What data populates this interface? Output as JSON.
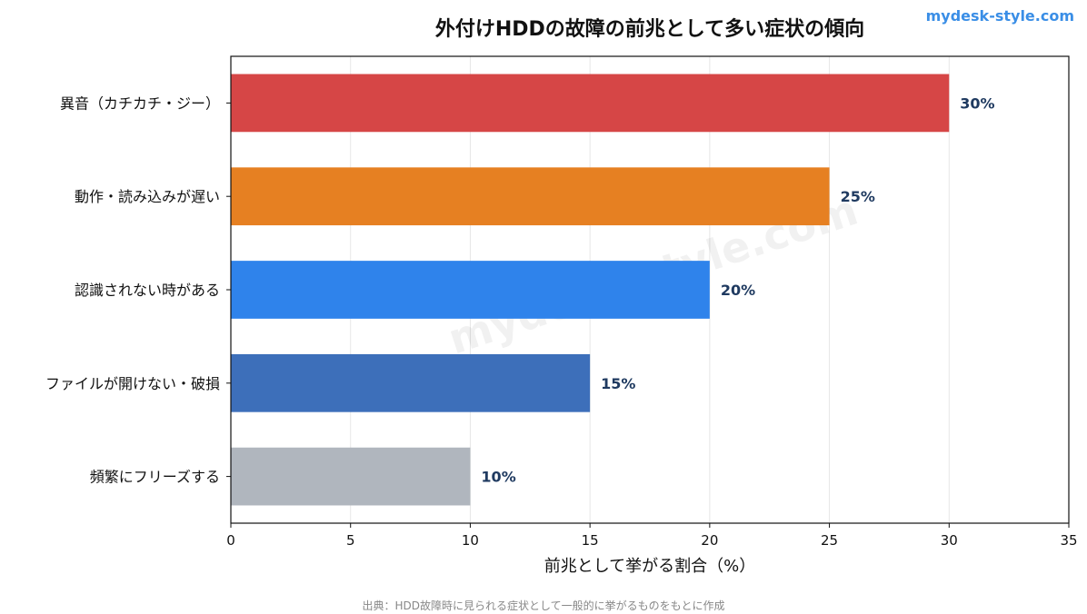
{
  "chart_data": {
    "type": "bar",
    "orientation": "horizontal",
    "title": "外付けHDDの故障の前兆として多い症状の傾向",
    "xlabel": "前兆として挙がる割合（%）",
    "ylabel": "",
    "xlim": [
      0,
      35
    ],
    "xticks": [
      0,
      5,
      10,
      15,
      20,
      25,
      30,
      35
    ],
    "grid": "vertical",
    "categories": [
      "異音（カチカチ・ジー）",
      "動作・読み込みが遅い",
      "認識されない時がある",
      "ファイルが開けない・破損",
      "頻繁にフリーズする"
    ],
    "values": [
      30,
      25,
      20,
      15,
      10
    ],
    "value_labels": [
      "30%",
      "25%",
      "20%",
      "15%",
      "10%"
    ],
    "colors": [
      "#d64646",
      "#e68022",
      "#2f83eb",
      "#3d6fba",
      "#b0b6be"
    ]
  },
  "brand": "mydesk-style.com",
  "watermark": "mydesk-style.com",
  "source": "出典：HDD故障時に見られる症状として一般的に挙がるものをもとに作成"
}
